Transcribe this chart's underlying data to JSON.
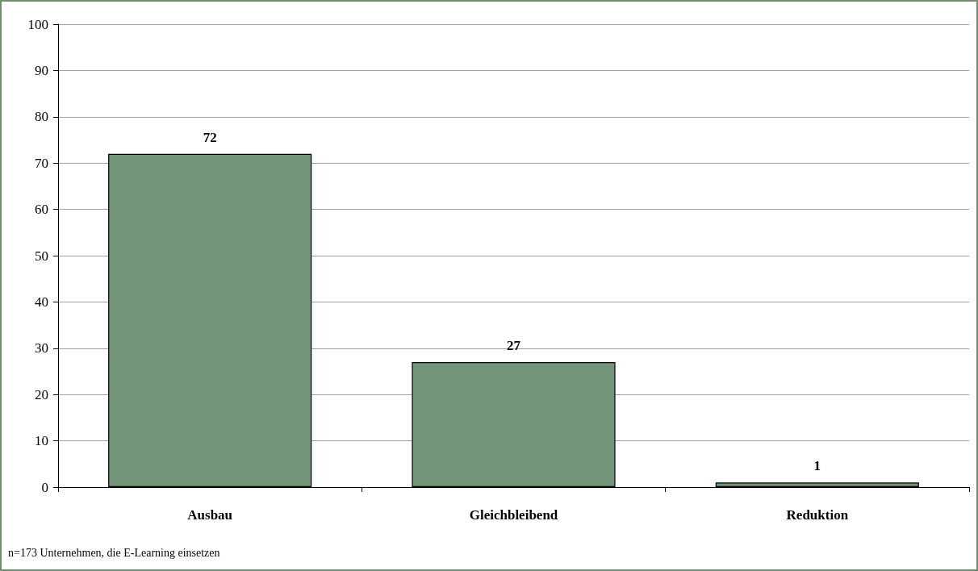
{
  "chart_data": {
    "type": "bar",
    "categories": [
      "Ausbau",
      "Gleichbleibend",
      "Reduktion"
    ],
    "values": [
      72,
      27,
      1
    ],
    "color": "#739478",
    "ylim": [
      0,
      100
    ],
    "yticks": [
      0,
      10,
      20,
      30,
      40,
      50,
      60,
      70,
      80,
      90,
      100
    ],
    "grid": "y",
    "data_labels": true,
    "annotations": [
      "n=173 Unternehmen, die E-Learning einsetzen"
    ]
  }
}
